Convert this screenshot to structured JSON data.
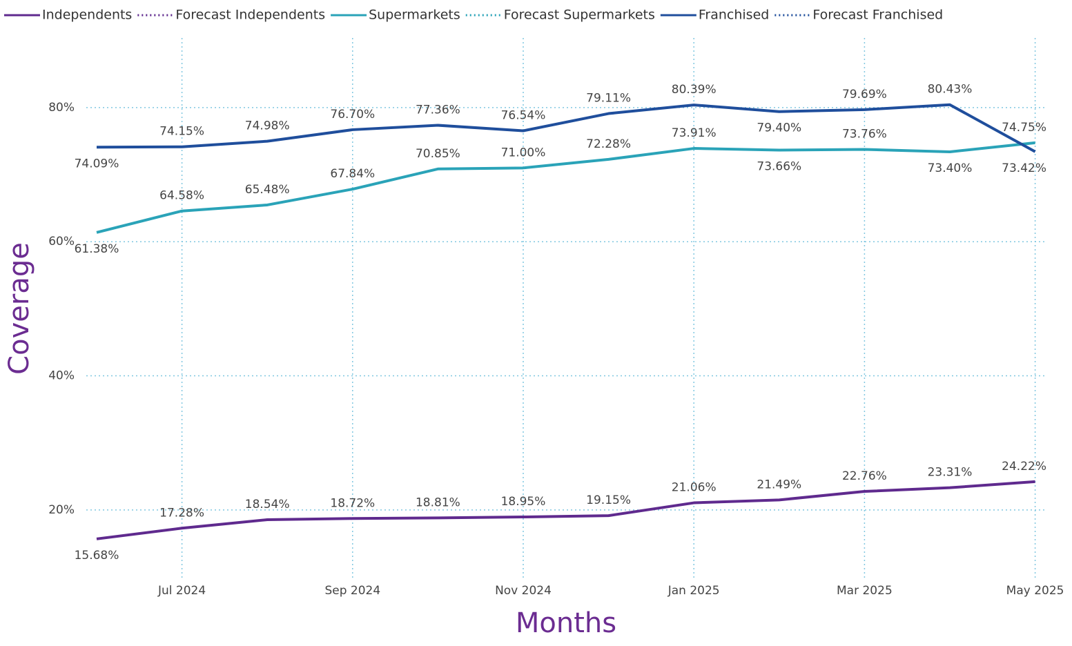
{
  "chart_data": {
    "type": "line",
    "x_label": "Months",
    "y_label": "Coverage",
    "categories": [
      null,
      "Jul 2024",
      null,
      "Sep 2024",
      null,
      "Nov 2024",
      null,
      "Jan 2025",
      null,
      "Mar 2025",
      null,
      "May 2025"
    ],
    "ylim": [
      10,
      91
    ],
    "yticks": [
      {
        "value": 20,
        "label": "20%"
      },
      {
        "value": 40,
        "label": "40%"
      },
      {
        "value": 60,
        "label": "60%"
      },
      {
        "value": 80,
        "label": "80%"
      }
    ],
    "grid": true,
    "legend": "top",
    "series": [
      {
        "name": "Independents",
        "color": "#5f2a8e",
        "dashed": false,
        "values": [
          15.68,
          17.28,
          18.54,
          18.72,
          18.81,
          18.95,
          19.15,
          21.06,
          21.49,
          22.76,
          23.31,
          24.22
        ],
        "value_labels": [
          "15.68%",
          "17.28%",
          "18.54%",
          "18.72%",
          "18.81%",
          "18.95%",
          "19.15%",
          "21.06%",
          "21.49%",
          "22.76%",
          "23.31%",
          "24.22%"
        ]
      },
      {
        "name": "Forecast Independents",
        "color": "#5f2a8e",
        "dashed": true,
        "values": [
          null,
          null,
          null,
          null,
          null,
          null,
          null,
          null,
          null,
          null,
          null,
          null
        ]
      },
      {
        "name": "Supermarkets",
        "color": "#2aa3b8",
        "dashed": false,
        "values": [
          61.38,
          64.58,
          65.48,
          67.84,
          70.85,
          71.0,
          72.28,
          73.91,
          73.66,
          73.76,
          73.4,
          74.75
        ],
        "value_labels": [
          "61.38%",
          "64.58%",
          "65.48%",
          "67.84%",
          "70.85%",
          "71.00%",
          "72.28%",
          "73.91%",
          "73.66%",
          "73.76%",
          "73.40%",
          "74.75%"
        ]
      },
      {
        "name": "Forecast Supermarkets",
        "color": "#2aa3b8",
        "dashed": true,
        "values": [
          null,
          null,
          null,
          null,
          null,
          null,
          null,
          null,
          null,
          null,
          null,
          null
        ]
      },
      {
        "name": "Franchised",
        "color": "#1f4e9c",
        "dashed": false,
        "values": [
          74.09,
          74.15,
          74.98,
          76.7,
          77.36,
          76.54,
          79.11,
          80.39,
          79.4,
          79.69,
          80.43,
          73.42
        ],
        "value_labels": [
          "74.09%",
          "74.15%",
          "74.98%",
          "76.70%",
          "77.36%",
          "76.54%",
          "79.11%",
          "80.39%",
          "79.40%",
          "79.69%",
          "80.43%",
          "73.42%"
        ]
      },
      {
        "name": "Forecast Franchised",
        "color": "#1f4e9c",
        "dashed": true,
        "values": [
          null,
          null,
          null,
          null,
          null,
          null,
          null,
          null,
          null,
          null,
          null,
          null
        ]
      }
    ]
  }
}
